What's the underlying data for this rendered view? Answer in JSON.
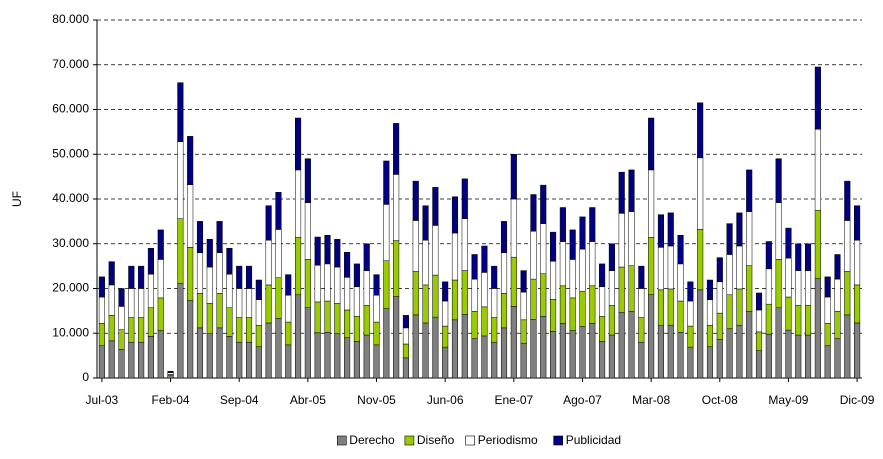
{
  "chart_data": {
    "type": "stacked_bar",
    "y_label": "UF",
    "categories": [
      "Jul-03",
      null,
      null,
      null,
      null,
      null,
      null,
      "Feb-04",
      null,
      null,
      null,
      null,
      null,
      null,
      "Sep-04",
      null,
      null,
      null,
      null,
      null,
      null,
      "Abr-05",
      null,
      null,
      null,
      null,
      null,
      null,
      "Nov-05",
      null,
      null,
      null,
      null,
      null,
      null,
      "Jun-06",
      null,
      null,
      null,
      null,
      null,
      null,
      "Ene-07",
      null,
      null,
      null,
      null,
      null,
      null,
      "Ago-07",
      null,
      null,
      null,
      null,
      null,
      null,
      "Mar-08",
      null,
      null,
      null,
      null,
      null,
      null,
      "Oct-08",
      null,
      null,
      null,
      null,
      null,
      null,
      "May-09",
      null,
      null,
      null,
      null,
      null,
      null,
      "Dic-09"
    ],
    "series": [
      {
        "name": "Derecho",
        "color": "#808080",
        "values": [
          7200,
          8300,
          6400,
          8000,
          8000,
          9300,
          10600,
          500,
          21100,
          17300,
          11200,
          9900,
          11200,
          9300,
          8000,
          8000,
          7000,
          12300,
          13300,
          7400,
          18600,
          15700,
          10100,
          10200,
          9900,
          9000,
          8200,
          9600,
          7400,
          15500,
          18200,
          4500,
          14100,
          12300,
          13600,
          6900,
          13000,
          14200,
          8800,
          9400,
          8000,
          11200,
          16000,
          7700,
          13100,
          13800,
          10400,
          12200,
          10600,
          11500,
          12200,
          8200,
          9600,
          14700,
          14900,
          8000,
          18600,
          11700,
          11800,
          10200,
          6900,
          19700,
          7000,
          8600,
          11000,
          11800,
          14900,
          6100,
          9800,
          15700,
          10700,
          9600,
          9600,
          22200,
          7200,
          8800,
          14100,
          12300
        ]
      },
      {
        "name": "Diseño",
        "color": "#99cc00",
        "values": [
          5000,
          5700,
          4400,
          5500,
          5500,
          6400,
          7300,
          300,
          14500,
          11900,
          7700,
          6800,
          7700,
          6400,
          5500,
          5500,
          4800,
          8500,
          9100,
          5100,
          12800,
          10800,
          6900,
          7000,
          6800,
          6200,
          5600,
          6600,
          5100,
          10700,
          12500,
          3100,
          9700,
          8500,
          9400,
          4700,
          8900,
          9800,
          6100,
          6500,
          5500,
          7700,
          11000,
          5300,
          9000,
          9500,
          7200,
          8400,
          7300,
          7900,
          8400,
          5600,
          6600,
          10100,
          10200,
          5500,
          12800,
          8000,
          8100,
          7000,
          4700,
          13500,
          4800,
          5900,
          7600,
          8100,
          10200,
          4200,
          6700,
          10800,
          7400,
          6600,
          6600,
          15300,
          5000,
          6100,
          9700,
          8500
        ]
      },
      {
        "name": "Periodismo",
        "color": "#ffffff",
        "values": [
          5900,
          6800,
          5200,
          6500,
          6500,
          7500,
          8600,
          400,
          17200,
          14000,
          9100,
          8100,
          9100,
          7500,
          6500,
          6500,
          5700,
          10000,
          10800,
          6000,
          15100,
          12700,
          8200,
          8300,
          8100,
          7300,
          6600,
          7800,
          6000,
          12600,
          14800,
          3600,
          11400,
          10000,
          11100,
          5600,
          10500,
          11600,
          7200,
          7700,
          6500,
          9100,
          13000,
          6200,
          10700,
          11200,
          8500,
          9900,
          8600,
          9400,
          9900,
          6600,
          7800,
          12000,
          12100,
          6500,
          15100,
          9500,
          9600,
          8300,
          5600,
          16000,
          5700,
          7000,
          9000,
          9600,
          12100,
          4900,
          7900,
          12700,
          8700,
          7800,
          7800,
          18100,
          5900,
          7200,
          11400,
          10000
        ]
      },
      {
        "name": "Publicidad",
        "color": "#000080",
        "values": [
          4500,
          5200,
          4000,
          5000,
          5000,
          5800,
          6600,
          300,
          13200,
          10800,
          7000,
          6200,
          7000,
          5800,
          5000,
          5000,
          4400,
          7700,
          8300,
          4600,
          11600,
          9800,
          6300,
          6400,
          6200,
          5600,
          5100,
          6000,
          4600,
          9700,
          11400,
          2800,
          8800,
          7700,
          8500,
          4300,
          8100,
          8900,
          5500,
          5900,
          5000,
          7000,
          10000,
          4800,
          8200,
          8600,
          6500,
          7600,
          6600,
          7200,
          7600,
          5100,
          6000,
          9200,
          9300,
          5000,
          11600,
          7300,
          7400,
          6400,
          4300,
          12300,
          4400,
          5400,
          6900,
          7400,
          9300,
          3800,
          6100,
          9800,
          6700,
          6000,
          6000,
          13900,
          4500,
          5500,
          8800,
          7700
        ]
      }
    ],
    "ylim": [
      0,
      80000
    ],
    "yticks": [
      0,
      {
        "value": 10000,
        "label": "10.000"
      },
      {
        "value": 20000,
        "label": "20.000"
      },
      {
        "value": 30000,
        "label": "30.000"
      },
      {
        "value": 40000,
        "label": "40.000"
      },
      {
        "value": 50000,
        "label": "50.000"
      },
      {
        "value": 60000,
        "label": "60.000"
      },
      {
        "value": 70000,
        "label": "70.000"
      },
      {
        "value": 80000,
        "label": "80.000"
      }
    ],
    "grid": true,
    "legend": "bottom"
  }
}
